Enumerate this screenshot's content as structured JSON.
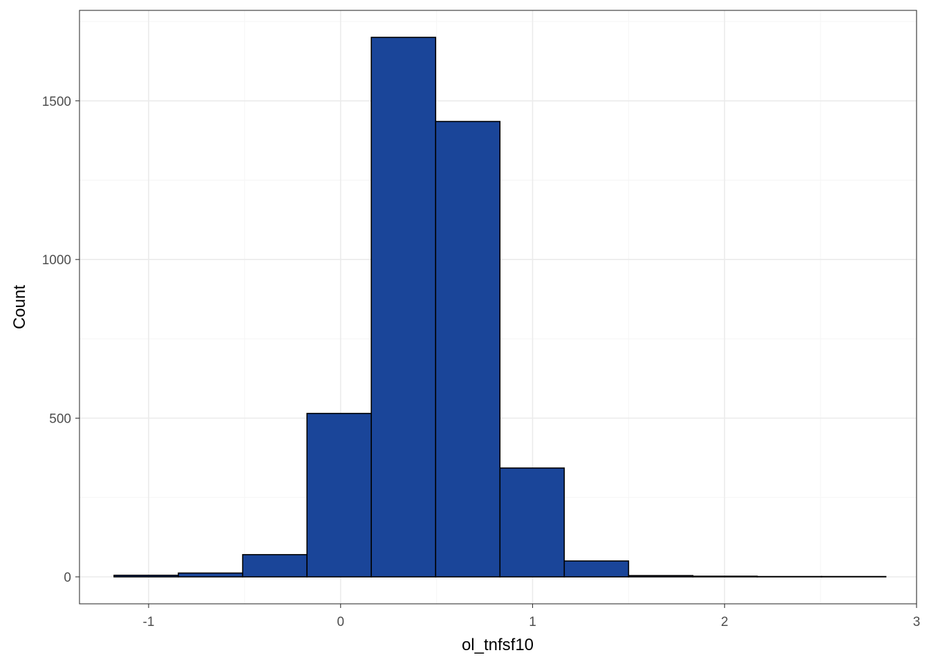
{
  "chart_data": {
    "type": "bar",
    "subtype": "histogram",
    "title": "",
    "xlabel": "ol_tnfsf10",
    "ylabel": "Count",
    "xlim": [
      -1.36,
      3.0
    ],
    "ylim": [
      -85,
      1785
    ],
    "x_ticks": [
      -1,
      0,
      1,
      2,
      3
    ],
    "x_tick_labels": [
      "-1",
      "0",
      "1",
      "2",
      "3"
    ],
    "y_ticks": [
      0,
      500,
      1000,
      1500
    ],
    "y_tick_labels": [
      "0",
      "500",
      "1000",
      "1500"
    ],
    "x_minor": [
      -0.5,
      0.5,
      1.5,
      2.5
    ],
    "y_minor": [
      250,
      750,
      1250,
      1750
    ],
    "grid": true,
    "legend": "none",
    "bins": [
      {
        "x0": -1.18,
        "x1": -0.845,
        "count": 5
      },
      {
        "x0": -0.845,
        "x1": -0.51,
        "count": 12
      },
      {
        "x0": -0.51,
        "x1": -0.175,
        "count": 70
      },
      {
        "x0": -0.175,
        "x1": 0.16,
        "count": 515
      },
      {
        "x0": 0.16,
        "x1": 0.495,
        "count": 1700
      },
      {
        "x0": 0.495,
        "x1": 0.83,
        "count": 1435
      },
      {
        "x0": 0.83,
        "x1": 1.165,
        "count": 343
      },
      {
        "x0": 1.165,
        "x1": 1.5,
        "count": 50
      },
      {
        "x0": 1.5,
        "x1": 1.835,
        "count": 4
      },
      {
        "x0": 1.835,
        "x1": 2.17,
        "count": 2
      },
      {
        "x0": 2.17,
        "x1": 2.505,
        "count": 1
      },
      {
        "x0": 2.505,
        "x1": 2.84,
        "count": 1
      }
    ],
    "colors": {
      "fill": "#1a4599",
      "stroke": "#000000",
      "grid_major": "#ebebeb",
      "grid_minor": "#f5f5f5",
      "panel_border": "#333333"
    }
  }
}
